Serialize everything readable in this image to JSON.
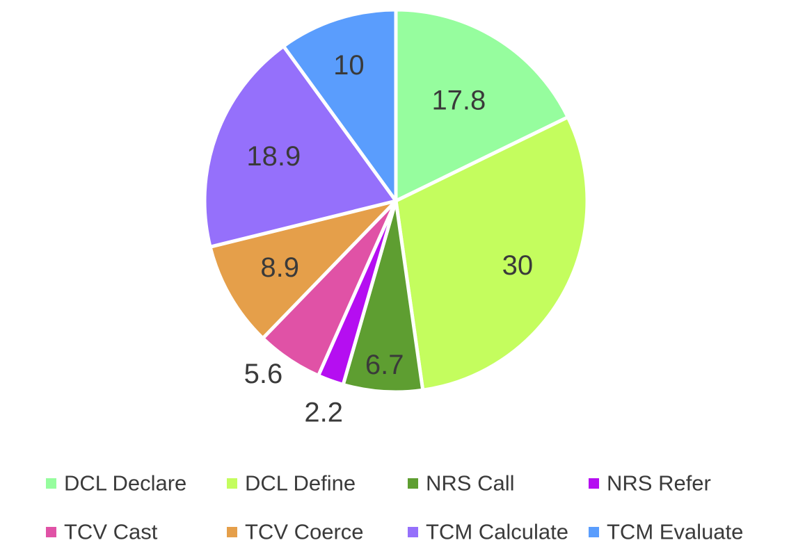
{
  "chart_data": {
    "type": "pie",
    "categories": [
      "DCL Declare",
      "DCL Define",
      "NRS Call",
      "NRS Refer",
      "TCV Cast",
      "TCV Coerce",
      "TCM Calculate",
      "TCM Evaluate"
    ],
    "values": [
      17.8,
      30,
      6.7,
      2.2,
      5.6,
      8.9,
      18.9,
      10
    ],
    "data_labels": [
      "17.8",
      "30",
      "6.7",
      "2.2",
      "5.6",
      "8.9",
      "18.9",
      "10"
    ],
    "colors": [
      "#96fd9e",
      "#c4fd5e",
      "#5e9e31",
      "#b50ef1",
      "#e052a6",
      "#e59f4a",
      "#9570fb",
      "#5a9dfd"
    ],
    "legend_position": "bottom",
    "start": "12 o'clock, clockwise"
  }
}
